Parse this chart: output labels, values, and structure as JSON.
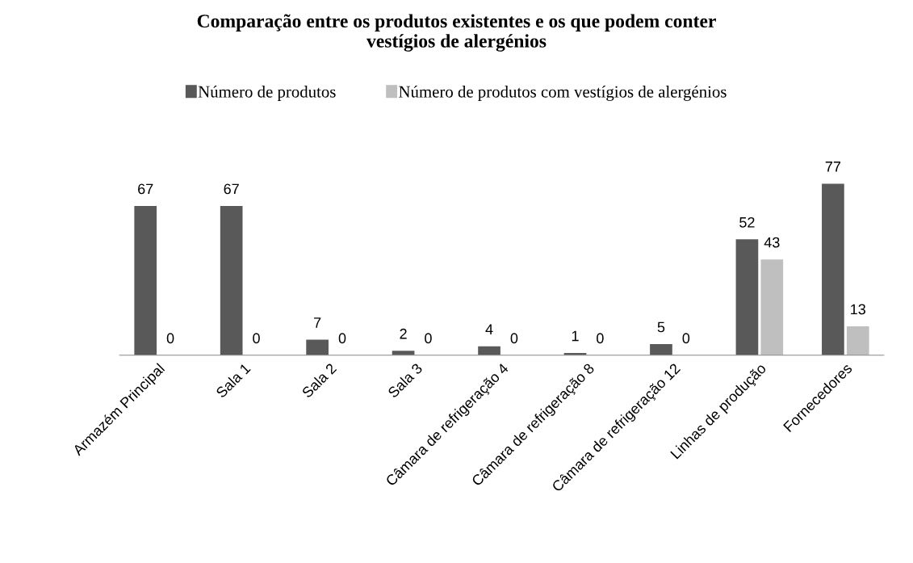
{
  "chart_data": {
    "type": "bar",
    "title": "Comparação entre os produtos existentes e os que podem conter\nvestígios de alergénios",
    "categories": [
      "Armazém Principal",
      "Sala 1",
      "Sala 2",
      "Sala 3",
      "Câmara de refrigeração 4",
      "Câmara de refrigeração 8",
      "Câmara de refrigeração 12",
      "Linhas de produção",
      "Fornecedores"
    ],
    "series": [
      {
        "name": "Número de produtos",
        "color": "#595959",
        "values": [
          67,
          67,
          7,
          2,
          4,
          1,
          5,
          52,
          77
        ]
      },
      {
        "name": "Número de produtos com vestígios de alergénios",
        "color": "#bfbfbf",
        "values": [
          0,
          0,
          0,
          0,
          0,
          0,
          0,
          43,
          13
        ]
      }
    ],
    "data_labels": true,
    "legend": "top",
    "grid": false,
    "tick_labels": "x"
  }
}
